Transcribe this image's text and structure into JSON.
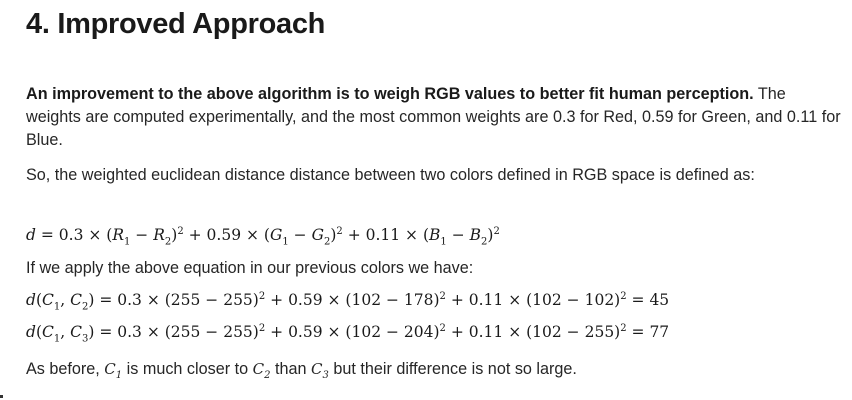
{
  "heading": "4. Improved Approach",
  "intro": {
    "bold": "An improvement to the above algorithm is to weigh RGB values to better fit human perception.",
    "rest": "The weights are computed experimentally, and the most common weights are 0.3 for Red, 0.59 for Green, and 0.11 for Blue."
  },
  "para2": "So, the weighted euclidean distance distance between two colors defined in RGB space is defined as:",
  "para3": "If we apply the above equation in our previous colors we have:",
  "para4": {
    "before": "As before,",
    "mid1": "is much closer to",
    "mid2": "than",
    "after": "but their difference is not so large."
  }
}
